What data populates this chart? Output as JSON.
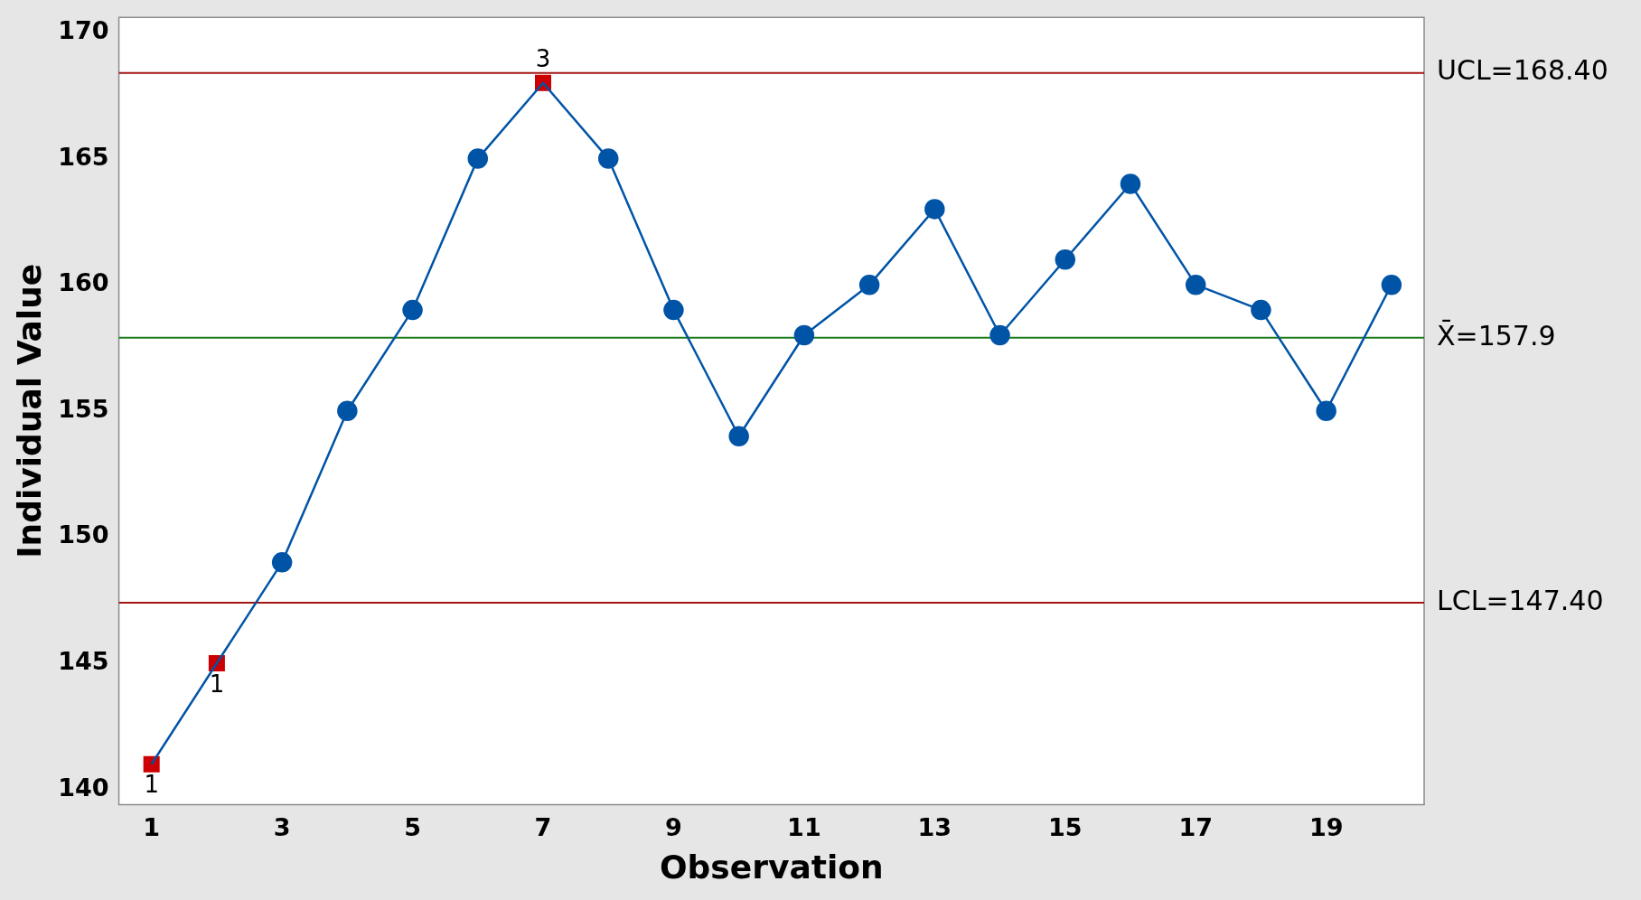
{
  "chart_data": {
    "type": "line",
    "xlabel": "Observation",
    "ylabel": "Individual Value",
    "x": [
      1,
      2,
      3,
      4,
      5,
      6,
      7,
      8,
      9,
      10,
      11,
      12,
      13,
      14,
      15,
      16,
      17,
      18,
      19,
      20
    ],
    "xlim": [
      0.5,
      20.5
    ],
    "xticks": [
      1,
      3,
      5,
      7,
      9,
      11,
      13,
      15,
      17,
      19
    ],
    "ylim": [
      139.4,
      170.6
    ],
    "yticks": [
      140,
      145,
      150,
      155,
      160,
      165,
      170
    ],
    "grid": false,
    "legend": false,
    "series": [
      {
        "type": "line",
        "marker": "none",
        "color": "#0054a6",
        "values": [
          141,
          145,
          149,
          155,
          159,
          165,
          168,
          165,
          159,
          154,
          158,
          160,
          163,
          158,
          161,
          164,
          160,
          159,
          155,
          160
        ]
      },
      {
        "type": "scatter",
        "marker": "circle",
        "color": "#0054a6",
        "values": [
          null,
          null,
          149,
          155,
          159,
          165,
          null,
          165,
          159,
          154,
          158,
          160,
          163,
          158,
          161,
          164,
          160,
          159,
          155,
          160
        ]
      },
      {
        "type": "scatter",
        "marker": "square",
        "color": "#cc0000",
        "x": [
          1,
          2,
          7
        ],
        "values": [
          141,
          145,
          168
        ]
      }
    ],
    "annotations": [
      {
        "text": "1",
        "x": 1,
        "y": 141
      },
      {
        "text": "1",
        "x": 2,
        "y": 145
      },
      {
        "text": "3",
        "x": 7,
        "y": 168
      }
    ],
    "ref_lines": [
      {
        "axis": "y",
        "value": 168.4,
        "label": "UCL=168.40",
        "color": "#a31515"
      },
      {
        "axis": "y",
        "value": 157.9,
        "label": "X̄=157.9",
        "color": "#1e7b1e"
      },
      {
        "axis": "y",
        "value": 147.4,
        "label": "LCL=147.40",
        "color": "#a31515"
      }
    ]
  }
}
